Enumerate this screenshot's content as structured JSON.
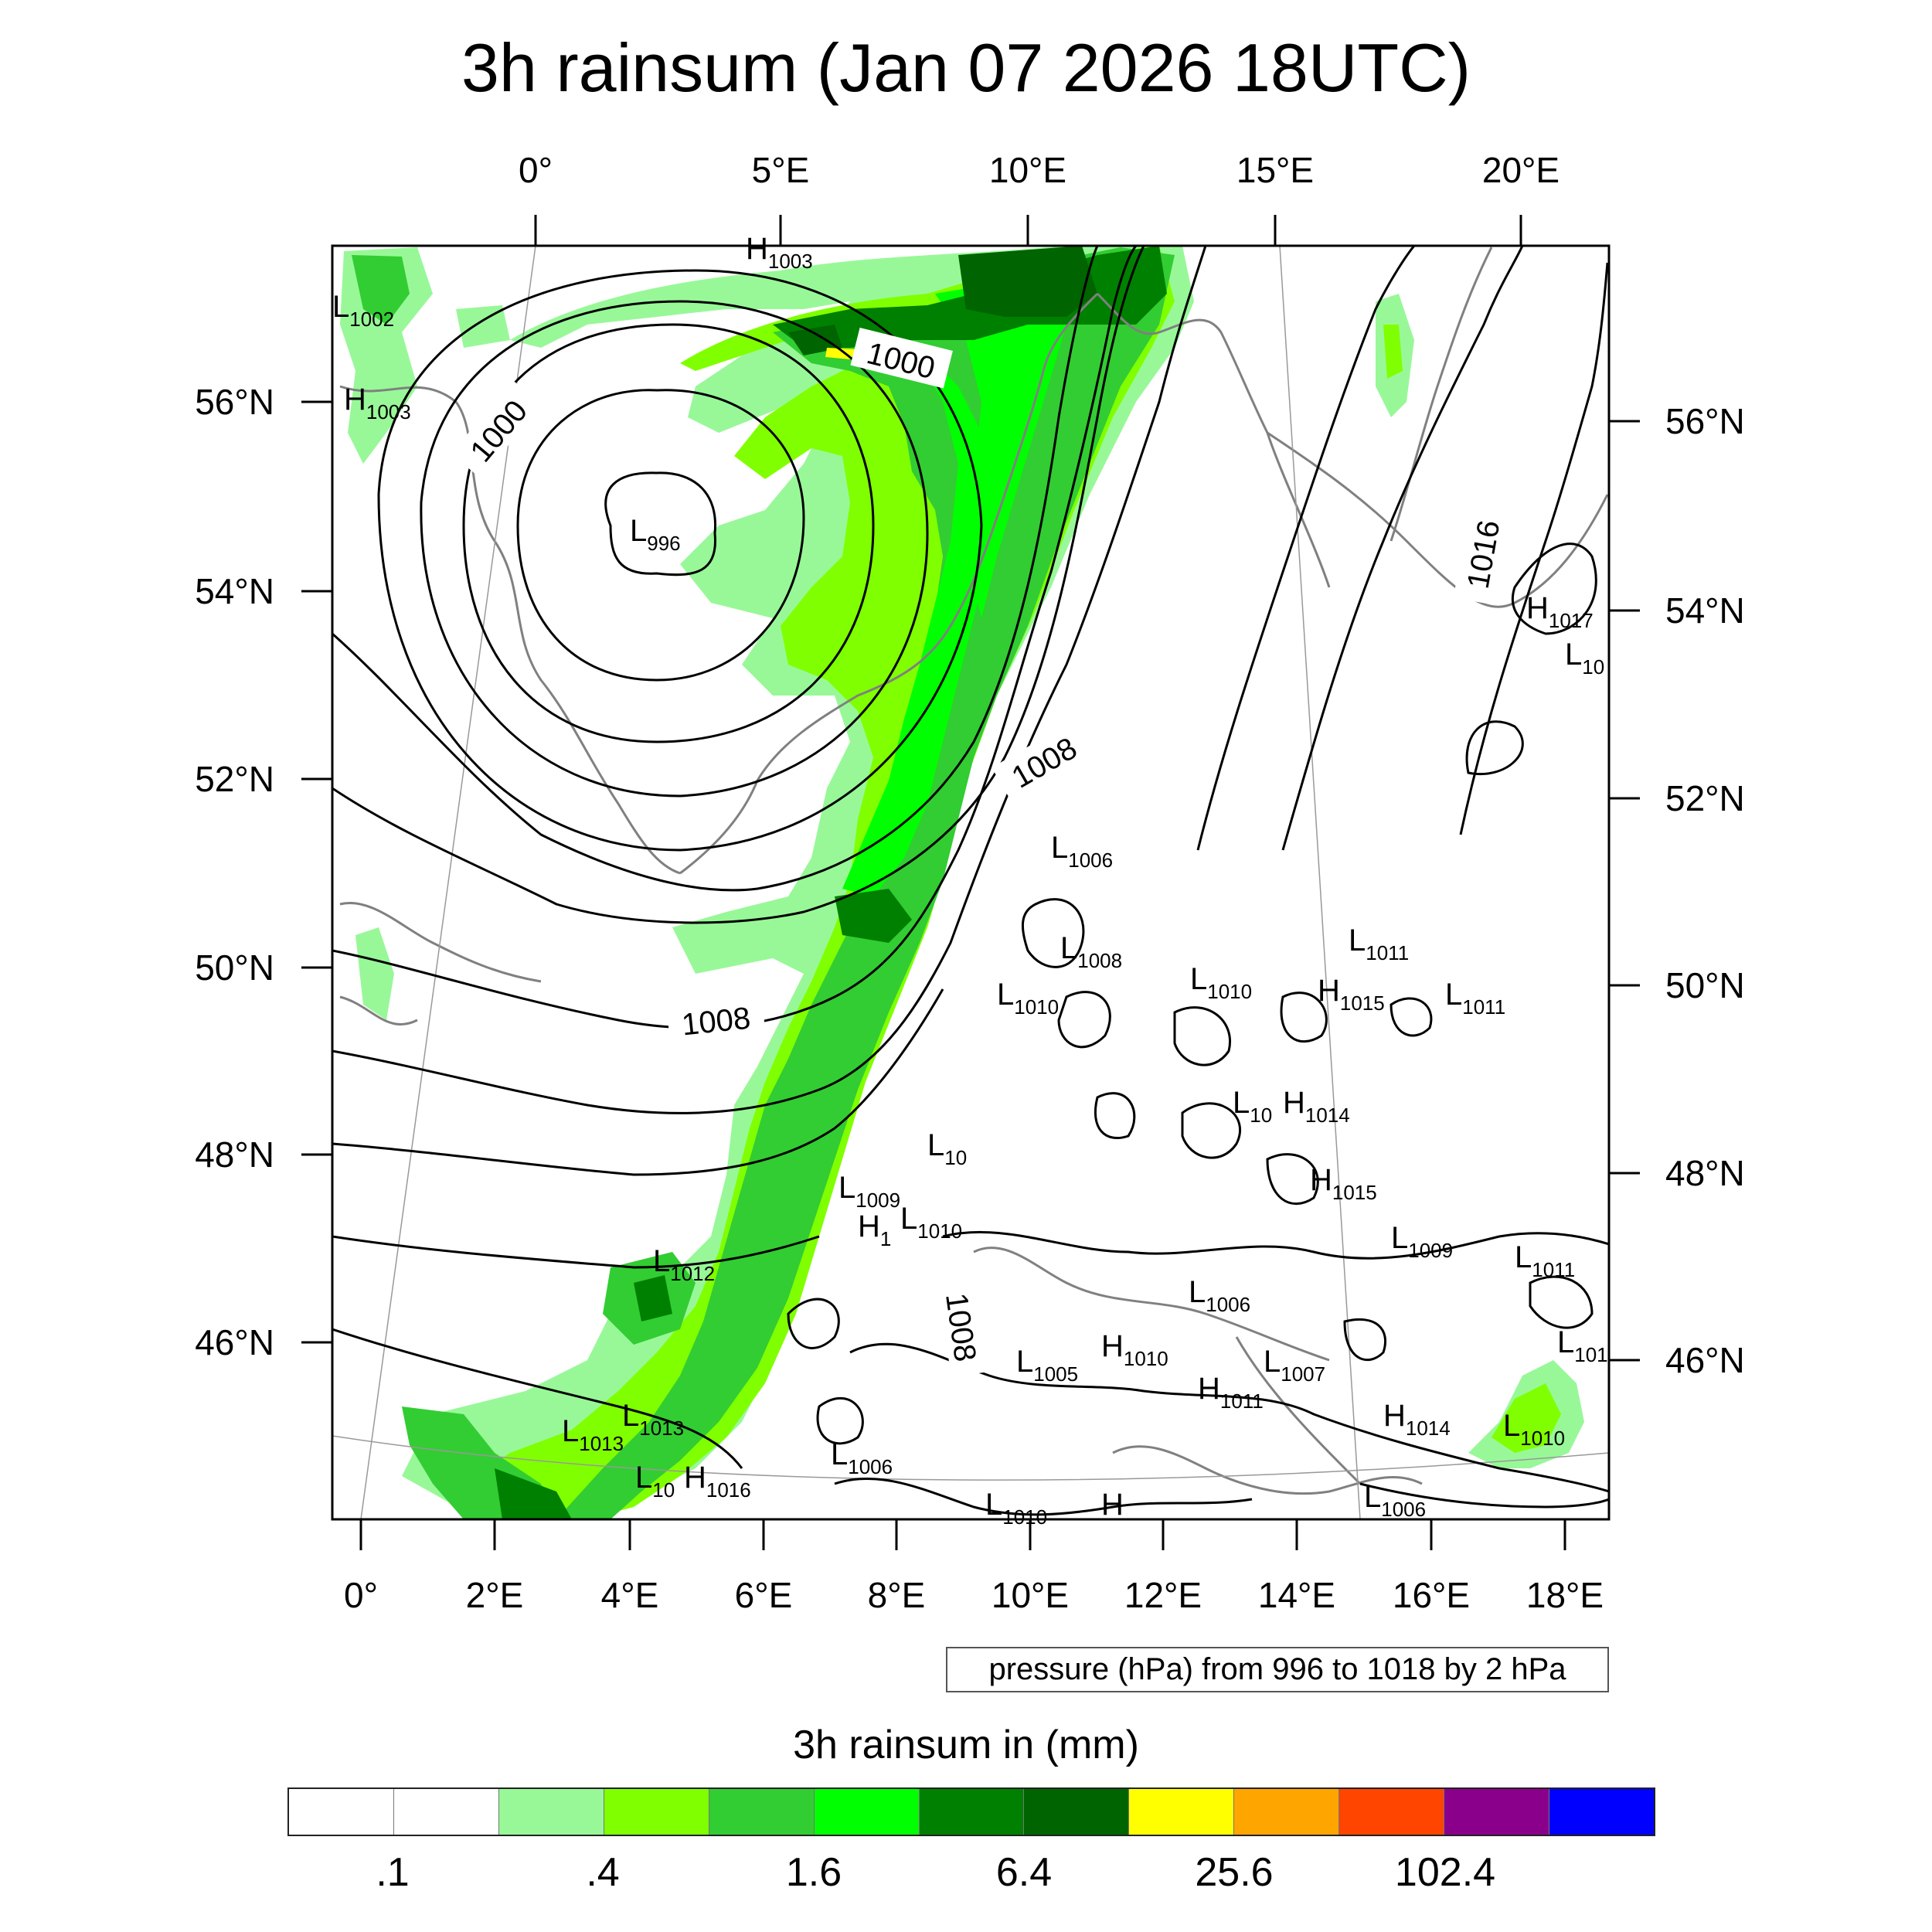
{
  "title": "3h rainsum (Jan 07 2026 18UTC)",
  "map_info": "pressure (hPa) from 996 to 1018 by 2 hPa",
  "top_lon_labels": [
    "0°",
    "5°E",
    "10°E",
    "15°E",
    "20°E"
  ],
  "bottom_lon_labels": [
    "0°",
    "2°E",
    "4°E",
    "6°E",
    "8°E",
    "10°E",
    "12°E",
    "14°E",
    "16°E",
    "18°E"
  ],
  "left_lat_labels": [
    "56°N",
    "54°N",
    "52°N",
    "50°N",
    "48°N",
    "46°N"
  ],
  "right_lat_labels": [
    "56°N",
    "54°N",
    "52°N",
    "50°N",
    "48°N",
    "46°N"
  ],
  "contour_labels": [
    "1000",
    "1000",
    "1008",
    "1008",
    "1016",
    "1008"
  ],
  "pressure_centers": [
    {
      "type": "H",
      "value": "1003"
    },
    {
      "type": "L",
      "value": "1002"
    },
    {
      "type": "H",
      "value": "1003"
    },
    {
      "type": "L",
      "value": "996"
    },
    {
      "type": "H",
      "value": "1017"
    },
    {
      "type": "L",
      "value": "10"
    },
    {
      "type": "L",
      "value": "1006"
    },
    {
      "type": "L",
      "value": "1008"
    },
    {
      "type": "L",
      "value": "1011"
    },
    {
      "type": "L",
      "value": "1010"
    },
    {
      "type": "H",
      "value": "1015"
    },
    {
      "type": "L",
      "value": "1011"
    },
    {
      "type": "L",
      "value": "10"
    },
    {
      "type": "H",
      "value": "1014"
    },
    {
      "type": "L",
      "value": "1010"
    },
    {
      "type": "L",
      "value": "10"
    },
    {
      "type": "L",
      "value": "1009"
    },
    {
      "type": "H",
      "value": "1015"
    },
    {
      "type": "H",
      "value": "1"
    },
    {
      "type": "L",
      "value": "1010"
    },
    {
      "type": "L",
      "value": "1009"
    },
    {
      "type": "L",
      "value": "1012"
    },
    {
      "type": "L",
      "value": "1011"
    },
    {
      "type": "L",
      "value": "1006"
    },
    {
      "type": "L",
      "value": "101"
    },
    {
      "type": "H",
      "value": "1010"
    },
    {
      "type": "L",
      "value": "1005"
    },
    {
      "type": "L",
      "value": "1007"
    },
    {
      "type": "H",
      "value": "1011"
    },
    {
      "type": "L",
      "value": "1013"
    },
    {
      "type": "L",
      "value": "1013"
    },
    {
      "type": "H",
      "value": "1014"
    },
    {
      "type": "L",
      "value": "1010"
    },
    {
      "type": "L",
      "value": "1006"
    },
    {
      "type": "L",
      "value": "10"
    },
    {
      "type": "H",
      "value": "1016"
    },
    {
      "type": "L",
      "value": "1006"
    },
    {
      "type": "L",
      "value": "1010"
    },
    {
      "type": "H",
      "value": ""
    }
  ],
  "legend": {
    "title": "3h rainsum in (mm)",
    "colors": [
      "#ffffff",
      "#ffffff",
      "#98f898",
      "#80ff00",
      "#32cd32",
      "#00ff00",
      "#008000",
      "#006400",
      "#ffff00",
      "#ffa500",
      "#ff4500",
      "#8b008b",
      "#0000ff"
    ],
    "labels": [
      ".1",
      ".4",
      "1.6",
      "6.4",
      "25.6",
      "102.4"
    ]
  },
  "colors": {
    "light_green": "#98f898",
    "lime": "#80ff00",
    "medium_green": "#32cd32",
    "bright_green": "#00ff00",
    "green": "#008000",
    "dark_green": "#006400",
    "yellow": "#ffff00",
    "coastline": "#808080",
    "isobar": "#000000"
  }
}
